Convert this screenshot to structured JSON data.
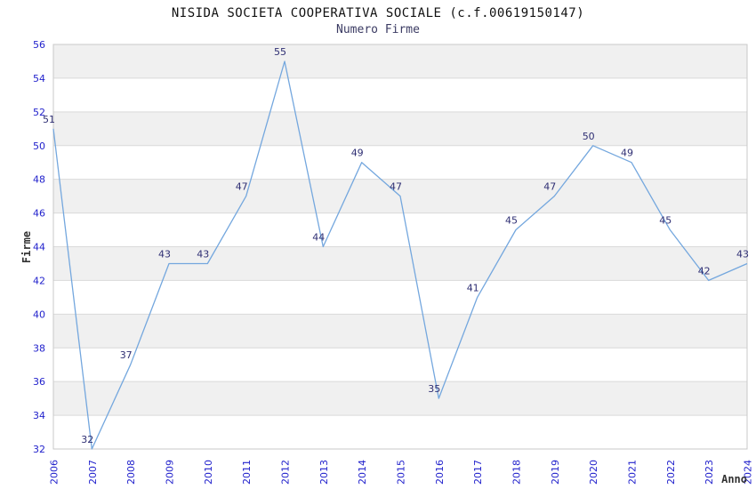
{
  "chart_data": {
    "type": "line",
    "title": "NISIDA SOCIETA COOPERATIVA SOCIALE (c.f.00619150147)",
    "subtitle": "Numero Firme",
    "xlabel": "Anno",
    "ylabel": "Firme",
    "x": [
      "2006",
      "2007",
      "2008",
      "2009",
      "2010",
      "2011",
      "2012",
      "2013",
      "2014",
      "2015",
      "2016",
      "2017",
      "2018",
      "2019",
      "2020",
      "2021",
      "2022",
      "2023",
      "2024"
    ],
    "values": [
      51,
      32,
      37,
      43,
      43,
      47,
      55,
      44,
      49,
      47,
      35,
      41,
      45,
      47,
      50,
      49,
      45,
      42,
      43
    ],
    "ylim": [
      32,
      56
    ],
    "ytick_step": 2,
    "grid": true,
    "legend": "none",
    "band_style": "alternating-horizontal",
    "colors": {
      "line": "#74a7de",
      "tick_label": "#2222cc",
      "data_label": "#2e2e73",
      "band": "#f0f0f0",
      "gridline": "#d9d9d9",
      "plot_border": "#c9c9c9",
      "title": "#111111",
      "subtitle": "#3b3b63",
      "axis_label": "#333333",
      "background": "#ffffff"
    }
  }
}
